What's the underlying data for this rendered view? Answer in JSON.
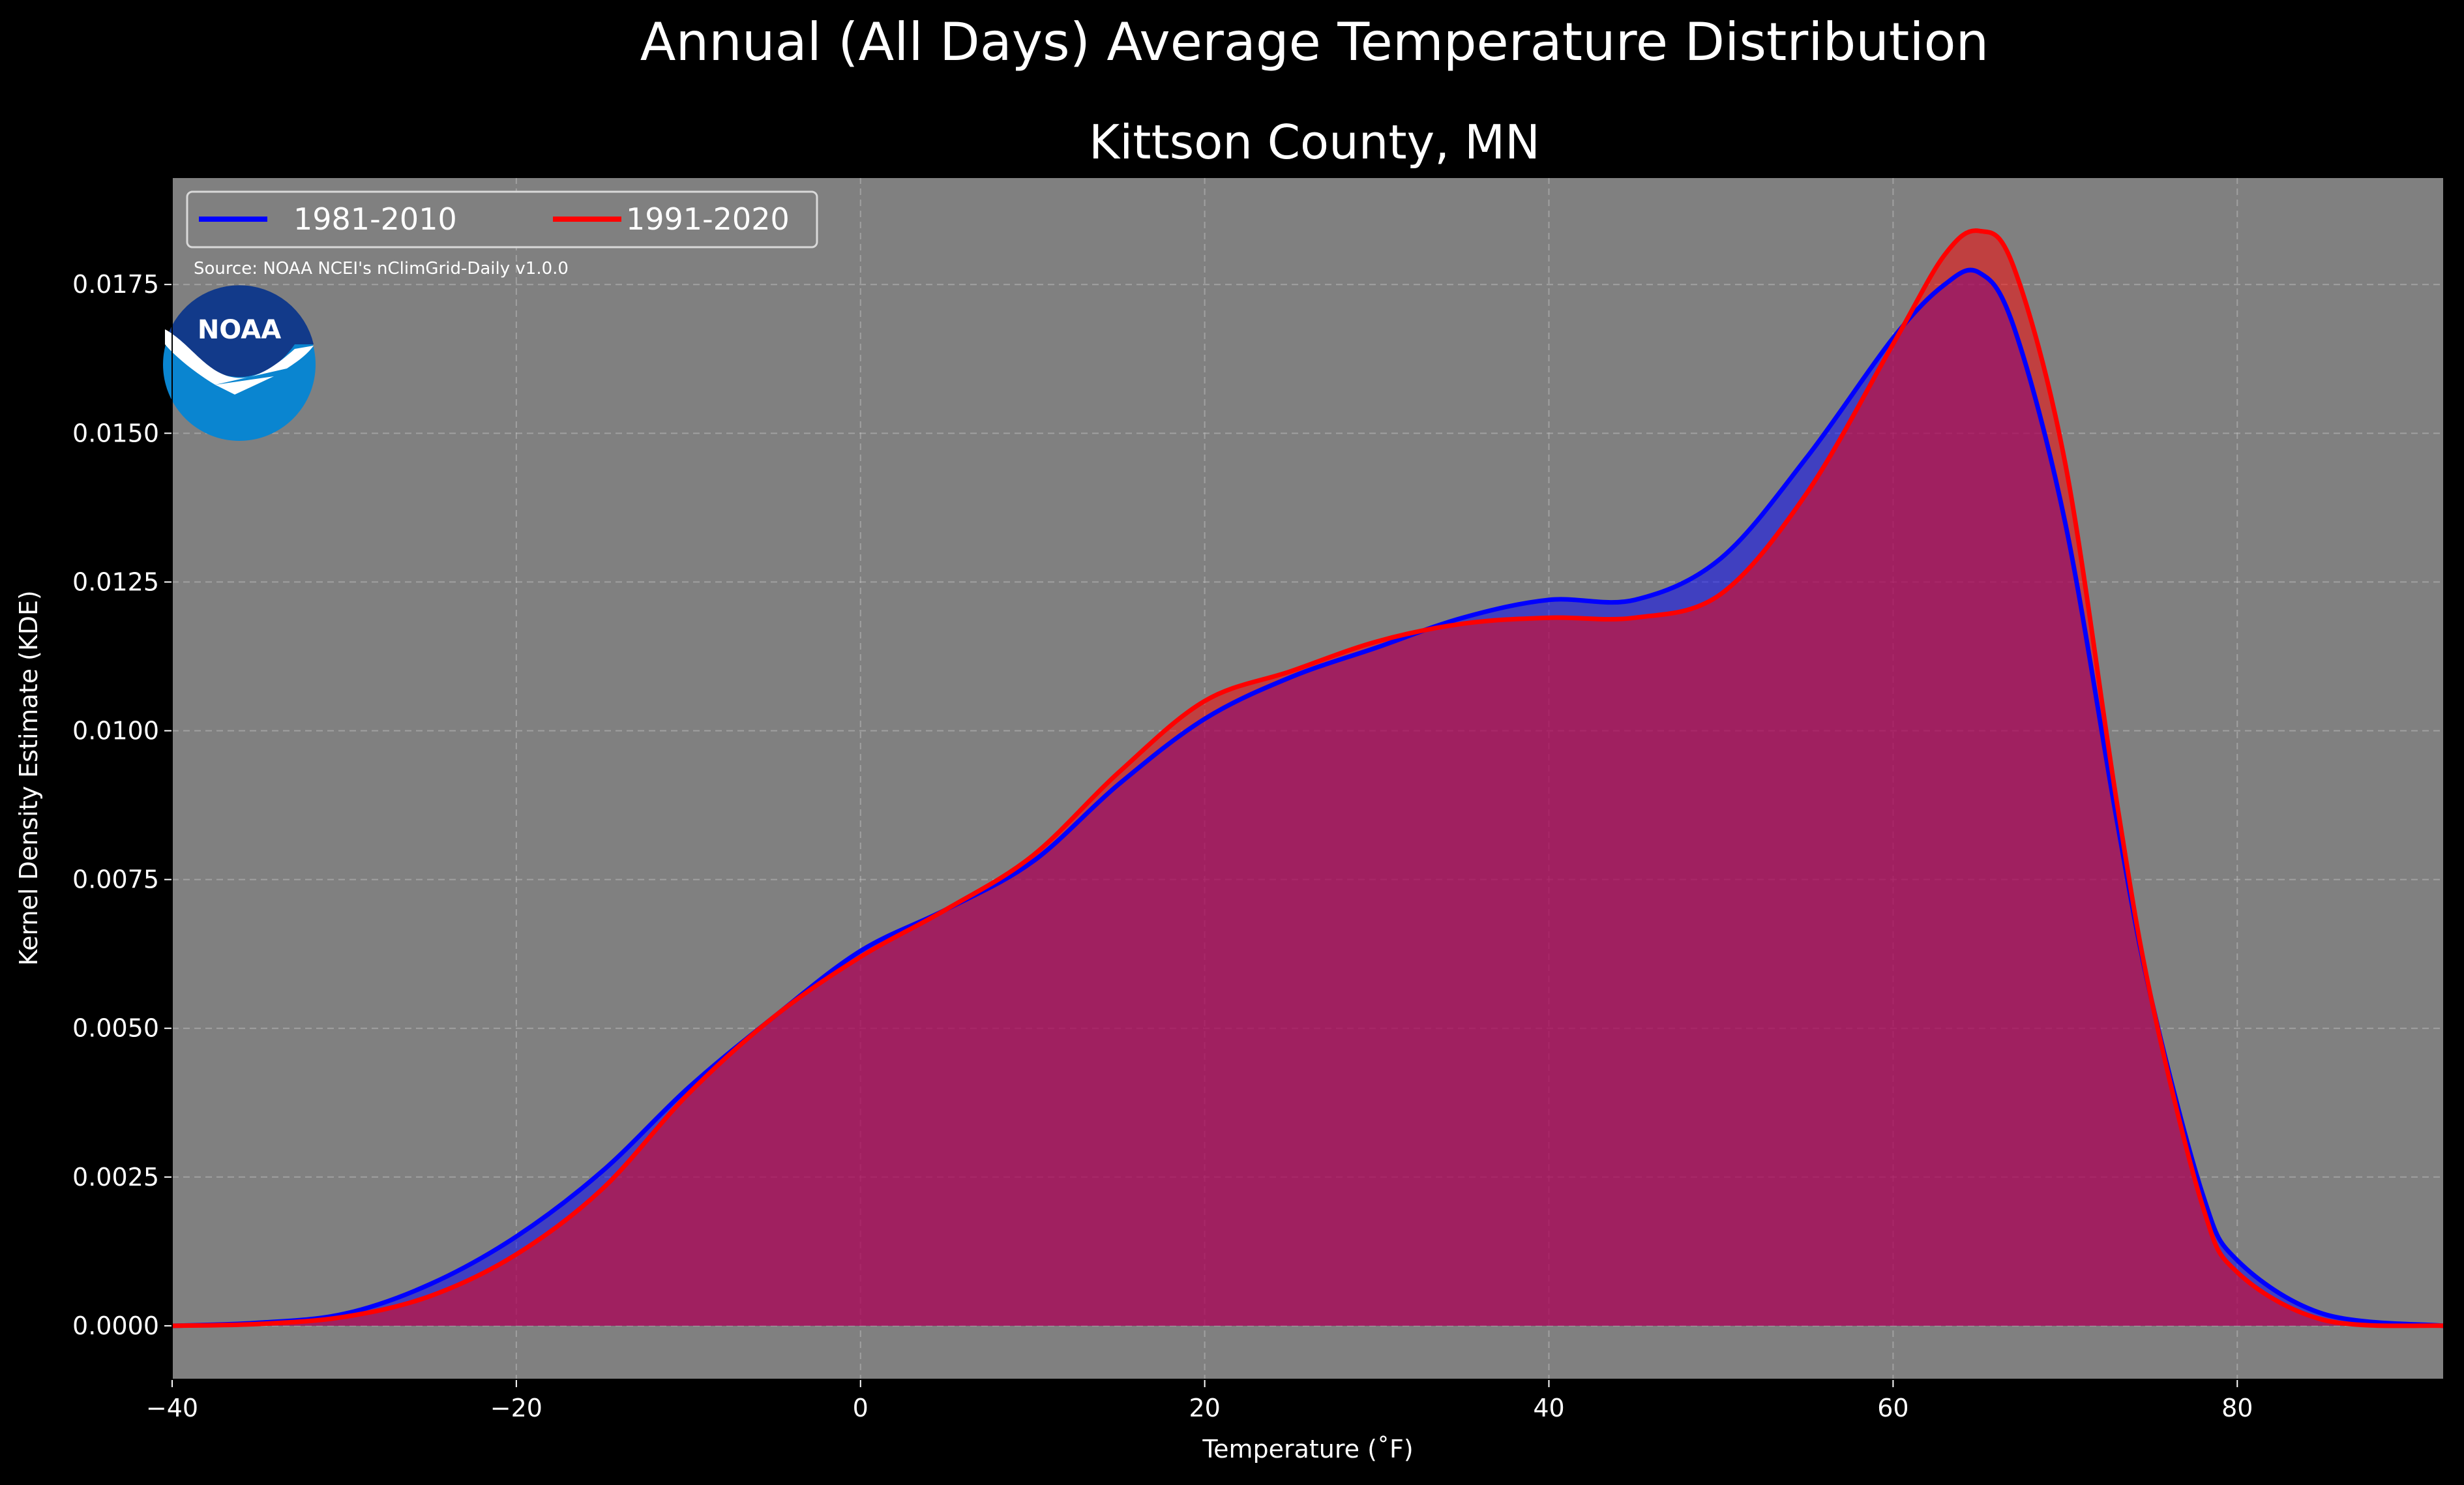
{
  "chart_data": {
    "type": "area",
    "title": "Annual (All Days) Average Temperature Distribution",
    "subtitle": "Kittson County, MN",
    "xlabel": "Temperature ($^\\circ$F)",
    "xlabel_display": "Temperature (˚F)",
    "ylabel": "Kernel Density Estimate (KDE)",
    "xlim": [
      -40,
      92
    ],
    "ylim": [
      -0.0009,
      0.0193
    ],
    "xticks": [
      -40,
      -20,
      0,
      20,
      40,
      60,
      80
    ],
    "xtick_labels": [
      "−40",
      "−20",
      "0",
      "20",
      "40",
      "60",
      "80"
    ],
    "yticks": [
      0,
      0.0025,
      0.005,
      0.0075,
      0.01,
      0.0125,
      0.015,
      0.0175
    ],
    "ytick_labels": [
      "0.0000",
      "0.0025",
      "0.0050",
      "0.0075",
      "0.0100",
      "0.0125",
      "0.0150",
      "0.0175"
    ],
    "grid": true,
    "legend_position": "top-left",
    "background": "#808080",
    "source_note": "Source: NOAA NCEI's nClimGrid-Daily v1.0.0",
    "logo_text": "NOAA",
    "series": [
      {
        "name": "1981-2010",
        "color": "#0000ff",
        "points": [
          [
            -40,
            0
          ],
          [
            -35,
            5e-05
          ],
          [
            -30,
            0.0002
          ],
          [
            -25,
            0.0007
          ],
          [
            -20,
            0.0015
          ],
          [
            -15,
            0.0026
          ],
          [
            -10,
            0.004
          ],
          [
            -5,
            0.0052
          ],
          [
            0,
            0.0063
          ],
          [
            5,
            0.007
          ],
          [
            10,
            0.0078
          ],
          [
            15,
            0.0091
          ],
          [
            20,
            0.0102
          ],
          [
            25,
            0.0109
          ],
          [
            30,
            0.0114
          ],
          [
            35,
            0.0119
          ],
          [
            40,
            0.0122
          ],
          [
            45,
            0.0122
          ],
          [
            50,
            0.0129
          ],
          [
            55,
            0.0146
          ],
          [
            60,
            0.0166
          ],
          [
            63,
            0.0175
          ],
          [
            65,
            0.0177
          ],
          [
            67,
            0.0168
          ],
          [
            70,
            0.0135
          ],
          [
            73,
            0.0085
          ],
          [
            75,
            0.0055
          ],
          [
            78,
            0.0022
          ],
          [
            80,
            0.0011
          ],
          [
            85,
            0.0002
          ],
          [
            92,
            0
          ]
        ]
      },
      {
        "name": "1991-2020",
        "color": "#ff0000",
        "points": [
          [
            -40,
            0
          ],
          [
            -35,
            3e-05
          ],
          [
            -30,
            0.00015
          ],
          [
            -25,
            0.0005
          ],
          [
            -20,
            0.0012
          ],
          [
            -15,
            0.0023
          ],
          [
            -10,
            0.0039
          ],
          [
            -5,
            0.0052
          ],
          [
            0,
            0.0062
          ],
          [
            5,
            0.007
          ],
          [
            10,
            0.0079
          ],
          [
            15,
            0.0093
          ],
          [
            20,
            0.0105
          ],
          [
            25,
            0.011
          ],
          [
            30,
            0.0115
          ],
          [
            35,
            0.0118
          ],
          [
            40,
            0.0119
          ],
          [
            45,
            0.0119
          ],
          [
            50,
            0.0123
          ],
          [
            55,
            0.014
          ],
          [
            60,
            0.0165
          ],
          [
            63,
            0.018
          ],
          [
            65,
            0.0184
          ],
          [
            67,
            0.0178
          ],
          [
            70,
            0.0145
          ],
          [
            73,
            0.0088
          ],
          [
            75,
            0.0055
          ],
          [
            78,
            0.002
          ],
          [
            80,
            0.0009
          ],
          [
            85,
            0.0001
          ],
          [
            92,
            0
          ]
        ]
      }
    ]
  }
}
